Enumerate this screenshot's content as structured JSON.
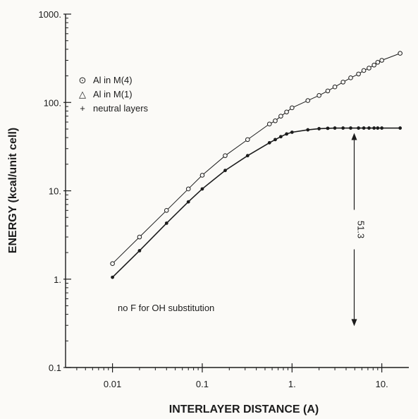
{
  "chart_data": {
    "type": "line",
    "xlabel": "INTERLAYER DISTANCE (A)",
    "ylabel": "ENERGY (kcal/unit cell)",
    "x_scale": "log",
    "y_scale": "log",
    "xlim": [
      0.003,
      20
    ],
    "ylim": [
      0.1,
      1000
    ],
    "x_ticks": [
      {
        "value": 0.01,
        "label": "0.01"
      },
      {
        "value": 0.1,
        "label": "0.1"
      },
      {
        "value": 1,
        "label": "1."
      },
      {
        "value": 10,
        "label": "10."
      }
    ],
    "y_ticks": [
      {
        "value": 0.1,
        "label": "0.1"
      },
      {
        "value": 1,
        "label": "1."
      },
      {
        "value": 10,
        "label": "10."
      },
      {
        "value": 100,
        "label": "100."
      },
      {
        "value": 1000,
        "label": "1000."
      }
    ],
    "series": [
      {
        "name": "Al in M(4)",
        "marker": "circle",
        "x": [
          0.01,
          0.02,
          0.04,
          0.07,
          0.1,
          0.18,
          0.32,
          0.56,
          0.65,
          0.75,
          0.87,
          1.0,
          1.5,
          2.0,
          2.5,
          3.0,
          3.7,
          4.5,
          5.5,
          6.3,
          7.2,
          8.2,
          9.0,
          10.0,
          16.0
        ],
        "values": [
          1.5,
          3.0,
          6.0,
          10.5,
          15.0,
          25.0,
          38.0,
          57.0,
          62.0,
          70.0,
          78.0,
          87.0,
          105.0,
          120.0,
          135.0,
          150.0,
          170.0,
          190.0,
          210.0,
          230.0,
          245.0,
          265.0,
          285.0,
          300.0,
          360.0
        ]
      },
      {
        "name": "Al in M(1)",
        "marker": "triangle",
        "x": [
          0.01,
          0.02,
          0.04,
          0.07,
          0.1,
          0.18,
          0.32,
          0.56,
          0.65,
          0.75,
          0.87,
          1.0,
          1.5,
          2.0,
          2.5,
          3.0,
          3.7,
          4.5,
          5.5,
          6.3,
          7.2,
          8.2,
          9.0,
          10.0,
          16.0
        ],
        "values": [
          1.05,
          2.1,
          4.3,
          7.5,
          10.5,
          17.0,
          25.0,
          35.0,
          38.0,
          41.0,
          44.0,
          46.0,
          49.0,
          50.5,
          51.0,
          51.3,
          51.3,
          51.3,
          51.3,
          51.3,
          51.3,
          51.3,
          51.3,
          51.3,
          51.3
        ]
      }
    ],
    "legend": {
      "placement": "top-left",
      "entries": [
        {
          "symbol": "⊙",
          "label": "Al in M(4)"
        },
        {
          "symbol": "△",
          "label": "Al in M(1)"
        },
        {
          "symbol": "+",
          "label": "neutral layers"
        }
      ]
    },
    "annotations": {
      "note": "no F for OH substitution",
      "dimension": {
        "label": "51.3",
        "x": 4.5,
        "y_top": 51.3,
        "y_bottom": 0.51
      }
    },
    "grid": false
  }
}
